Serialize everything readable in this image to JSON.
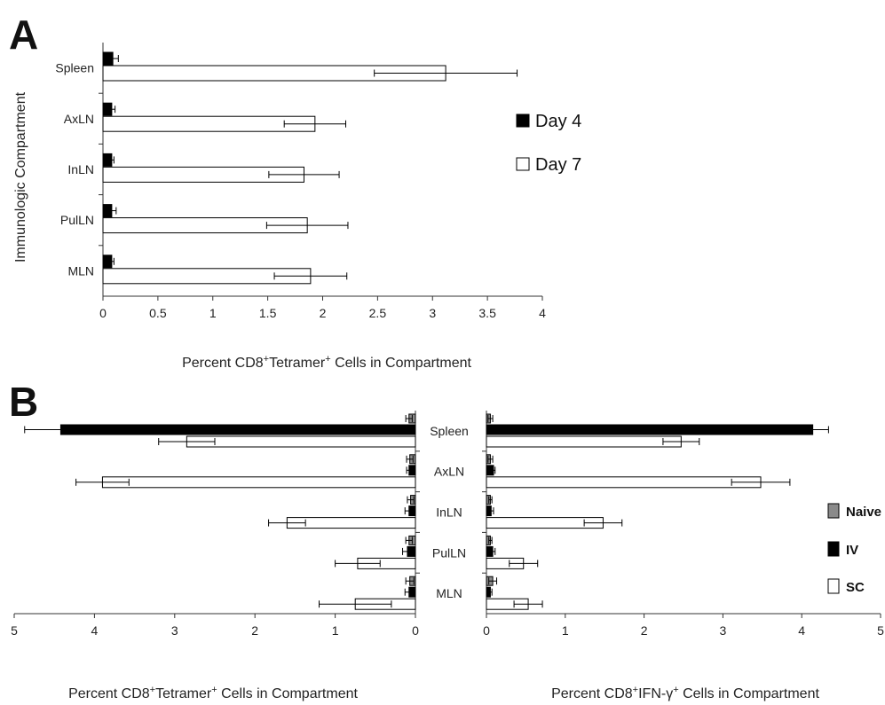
{
  "panel_a": {
    "letter": "A"
  },
  "panel_b": {
    "letter": "B"
  },
  "colors": {
    "naive": "#8a8a8a",
    "iv": "#000000",
    "sc": "#ffffff",
    "day4": "#000000",
    "day7": "#ffffff",
    "axis": "#333333"
  },
  "chart_data": [
    {
      "type": "bar",
      "orientation": "horizontal",
      "categories": [
        "Spleen",
        "AxLN",
        "InLN",
        "PulLN",
        "MLN"
      ],
      "series": [
        {
          "name": "Day 4",
          "values": [
            0.09,
            0.08,
            0.08,
            0.08,
            0.08
          ],
          "errors": [
            0.05,
            0.03,
            0.02,
            0.04,
            0.02
          ]
        },
        {
          "name": "Day 7",
          "values": [
            3.12,
            1.93,
            1.83,
            1.86,
            1.89
          ],
          "errors": [
            0.65,
            0.28,
            0.32,
            0.37,
            0.33
          ]
        }
      ],
      "xlabel": "Percent CD8⁺Tetramer⁺ Cells in Compartment",
      "ylabel": "Immunologic Compartment",
      "xlim": [
        0,
        4
      ],
      "xticks": [
        "0",
        "0.5",
        "1",
        "1.5",
        "2",
        "2.5",
        "3",
        "3.5",
        "4"
      ],
      "legend": "right"
    },
    {
      "type": "bar",
      "orientation": "horizontal",
      "direction": "reversed",
      "categories": [
        "Spleen",
        "AxLN",
        "InLN",
        "PulLN",
        "MLN"
      ],
      "series": [
        {
          "name": "Naive",
          "values": [
            0.08,
            0.07,
            0.06,
            0.08,
            0.07
          ],
          "errors": [
            0.04,
            0.04,
            0.04,
            0.04,
            0.05
          ]
        },
        {
          "name": "IV",
          "values": [
            4.42,
            0.08,
            0.08,
            0.1,
            0.08
          ],
          "errors": [
            0.45,
            0.03,
            0.05,
            0.06,
            0.05
          ]
        },
        {
          "name": "SC",
          "values": [
            2.85,
            3.9,
            1.6,
            0.72,
            0.75
          ],
          "errors": [
            0.35,
            0.33,
            0.23,
            0.28,
            0.45
          ]
        }
      ],
      "xlabel": "Percent CD8⁺Tetramer⁺ Cells in Compartment",
      "xlim": [
        5,
        0
      ],
      "xticks": [
        "5",
        "4",
        "3",
        "2",
        "1",
        "0"
      ]
    },
    {
      "type": "bar",
      "orientation": "horizontal",
      "categories": [
        "Spleen",
        "AxLN",
        "InLN",
        "PulLN",
        "MLN"
      ],
      "series": [
        {
          "name": "Naive",
          "values": [
            0.05,
            0.05,
            0.05,
            0.05,
            0.08
          ],
          "errors": [
            0.03,
            0.03,
            0.02,
            0.02,
            0.05
          ]
        },
        {
          "name": "IV",
          "values": [
            4.14,
            0.09,
            0.06,
            0.08,
            0.05
          ],
          "errors": [
            0.2,
            0.02,
            0.03,
            0.03,
            0.02
          ]
        },
        {
          "name": "SC",
          "values": [
            2.47,
            3.48,
            1.48,
            0.47,
            0.53
          ],
          "errors": [
            0.23,
            0.37,
            0.24,
            0.18,
            0.18
          ]
        }
      ],
      "xlabel": "Percent CD8⁺IFN-γ⁺ Cells in Compartment",
      "xlim": [
        0,
        5
      ],
      "xticks": [
        "0",
        "1",
        "2",
        "3",
        "4",
        "5"
      ],
      "legend": "right"
    }
  ]
}
